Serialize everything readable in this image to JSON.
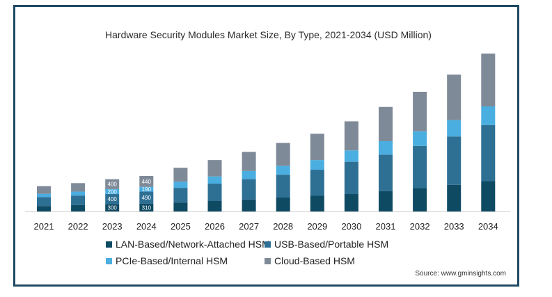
{
  "chart_data": {
    "type": "bar",
    "stacked": true,
    "title": "Hardware Security Modules Market Size, By Type, 2021-2034 (USD Million)",
    "categories": [
      "2021",
      "2022",
      "2023",
      "2024",
      "2025",
      "2026",
      "2027",
      "2028",
      "2029",
      "2030",
      "2031",
      "2032",
      "2033",
      "2034"
    ],
    "series": [
      {
        "name": "LAN-Based/Network-Attached HSM",
        "color": "#0f4a63",
        "values": [
          220,
          260,
          300,
          310,
          360,
          420,
          480,
          560,
          630,
          700,
          820,
          940,
          1070,
          1220
        ]
      },
      {
        "name": "USB-Based/Portable HSM",
        "color": "#2e6f94",
        "values": [
          360,
          380,
          400,
          490,
          590,
          700,
          820,
          920,
          1050,
          1300,
          1470,
          1700,
          1950,
          2260
        ]
      },
      {
        "name": "PCIe-Based/Internal HSM",
        "color": "#4aaee0",
        "values": [
          130,
          160,
          200,
          190,
          250,
          290,
          330,
          360,
          390,
          460,
          540,
          590,
          660,
          750
        ]
      },
      {
        "name": "Cloud-Based HSM",
        "color": "#7f8a98",
        "values": [
          310,
          340,
          400,
          440,
          560,
          660,
          770,
          920,
          1060,
          1170,
          1380,
          1590,
          1830,
          2130
        ]
      }
    ],
    "data_labels": {
      "2023": [
        300,
        400,
        200,
        400
      ],
      "2024": [
        310,
        490,
        190,
        440
      ]
    },
    "ylim": [
      0,
      6500
    ],
    "yaxis_visible": false,
    "grid": false,
    "legend_placement": "bottom"
  },
  "source": "Source: www.gminsights.com"
}
